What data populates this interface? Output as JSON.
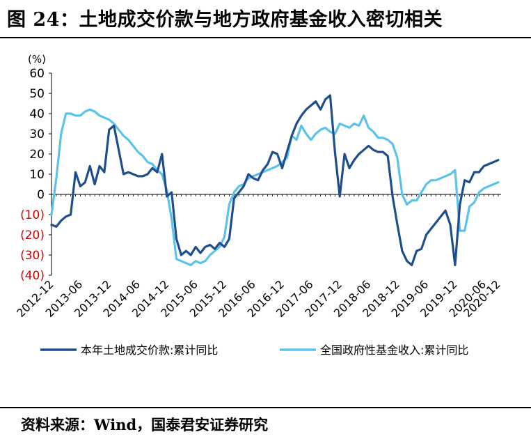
{
  "figure": {
    "title": "图 24：土地成交价款与地方政府基金收入密切相关",
    "source": "资料来源：Wind，国泰君安证券研究"
  },
  "colors": {
    "series1": "#1f4e8c",
    "series2": "#5bc3ea",
    "negative_tick": "#d40000"
  },
  "chart_data": {
    "type": "line",
    "ylabel": "(%)",
    "ylim": [
      -40,
      60
    ],
    "yticks": [
      60,
      50,
      40,
      30,
      20,
      10,
      0,
      -10,
      -20,
      -30,
      -40
    ],
    "ytick_labels": [
      "60",
      "50",
      "40",
      "30",
      "20",
      "10",
      "0",
      "(10)",
      "(20)",
      "(30)",
      "(40)"
    ],
    "xtick_labels": [
      "2012-12",
      "2013-06",
      "2013-12",
      "2014-06",
      "2014-12",
      "2015-06",
      "2015-12",
      "2016-06",
      "2016-12",
      "2017-06",
      "2017-12",
      "2018-06",
      "2018-12",
      "2019-06",
      "2019-12",
      "2020-06",
      "2020-12"
    ],
    "x_start": "2012-12",
    "legend_position": "bottom",
    "series": [
      {
        "name": "本年土地成交价款:累计同比",
        "color": "#1f4e8c",
        "values": [
          -15,
          -16,
          -13,
          -11,
          -10,
          11,
          4,
          6,
          14,
          5,
          14,
          11,
          32,
          34,
          22,
          10,
          11,
          10,
          9,
          9,
          10,
          13,
          11,
          20,
          -1,
          1,
          -22,
          -30,
          -28,
          -30,
          -26,
          -29,
          -26,
          -25,
          -27,
          -24,
          -26,
          -22,
          -2,
          1,
          4,
          10,
          8,
          7,
          12,
          15,
          21,
          20,
          13,
          21,
          29,
          35,
          39,
          42,
          44,
          46,
          42,
          47,
          49,
          21,
          -1,
          20,
          13,
          17,
          20,
          22,
          24,
          22,
          21,
          21,
          19,
          -1,
          -15,
          -28,
          -33,
          -35,
          -28,
          -27,
          -20,
          -17,
          -14,
          -11,
          -8,
          -15,
          -35,
          -5,
          7,
          6,
          11,
          11,
          14,
          15,
          16,
          17
        ]
      },
      {
        "name": "全国政府性基金收入:累计同比",
        "color": "#5bc3ea",
        "values": [
          -10,
          8,
          30,
          40,
          40,
          39,
          39,
          41,
          42,
          41,
          39,
          38,
          37,
          35,
          32,
          29,
          27,
          24,
          21,
          19,
          16,
          15,
          12,
          10,
          2,
          -12,
          -32,
          -33,
          -34,
          -35,
          -33,
          -34,
          -33,
          -30,
          -28,
          -26,
          -21,
          -5,
          1,
          4,
          5,
          8,
          9,
          10,
          11,
          12,
          13,
          14,
          16,
          18,
          29,
          27,
          34,
          30,
          27,
          30,
          32,
          33,
          31,
          30,
          35,
          34,
          33,
          35,
          34,
          39,
          33,
          31,
          28,
          28,
          27,
          25,
          18,
          0,
          -5,
          -3,
          -3,
          1,
          5,
          7,
          7,
          8,
          9,
          10,
          12,
          -18,
          -18,
          -6,
          -4,
          1,
          3,
          4,
          5,
          6
        ]
      }
    ]
  }
}
